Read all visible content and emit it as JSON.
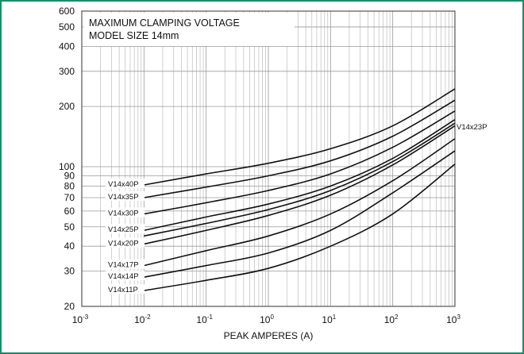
{
  "chart_data": {
    "type": "line",
    "title": [
      "MAXIMUM CLAMPING VOLTAGE",
      "MODEL SIZE 14mm"
    ],
    "xlabel": "PEAK AMPERES (A)",
    "xscale": "log",
    "yscale": "log",
    "xlim": [
      0.001,
      1000
    ],
    "ylim": [
      20,
      600
    ],
    "x_ticks": [
      {
        "base": "10",
        "exp": "-3"
      },
      {
        "base": "10",
        "exp": "-2"
      },
      {
        "base": "10",
        "exp": "-1"
      },
      {
        "base": "10",
        "exp": "0"
      },
      {
        "base": "10",
        "exp": "1"
      },
      {
        "base": "10",
        "exp": "2"
      },
      {
        "base": "10",
        "exp": "3"
      }
    ],
    "y_ticks": [
      20,
      30,
      40,
      50,
      60,
      70,
      80,
      90,
      100,
      200,
      300,
      400,
      500,
      600
    ],
    "grid": true,
    "x": [
      0.01,
      0.1,
      1,
      10,
      100,
      1000
    ],
    "series": [
      {
        "name": "V14x40P",
        "values": [
          81,
          92,
          104,
          123,
          160,
          245
        ]
      },
      {
        "name": "V14x35P",
        "values": [
          70,
          79,
          90,
          107,
          142,
          215
        ]
      },
      {
        "name": "V14x30P",
        "values": [
          58,
          66,
          76,
          92,
          125,
          190
        ]
      },
      {
        "name": "V14x25P",
        "values": [
          48,
          56,
          65,
          80,
          110,
          172
        ]
      },
      {
        "name": "V14x20P",
        "values": [
          41,
          48,
          57,
          72,
          102,
          160
        ]
      },
      {
        "name": "V14x17P",
        "values": [
          32,
          38,
          45,
          58,
          85,
          138
        ]
      },
      {
        "name": "V14x14P",
        "values": [
          28,
          32,
          37,
          48,
          74,
          120
        ]
      },
      {
        "name": "V14x11P",
        "values": [
          24,
          27,
          31,
          40,
          58,
          103
        ]
      },
      {
        "name": "V14x23P",
        "values": [
          45,
          52,
          61,
          76,
          106,
          165
        ]
      }
    ]
  }
}
